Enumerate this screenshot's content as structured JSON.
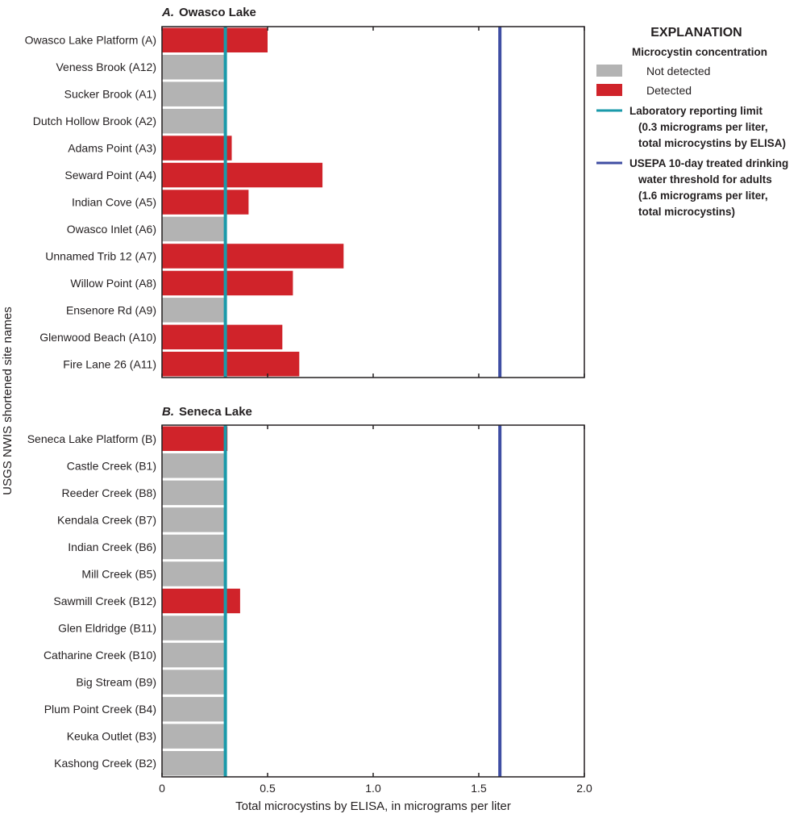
{
  "chart_data": {
    "type": "bar",
    "orientation": "horizontal",
    "xlabel": "Total microcystins by ELISA, in micrograms per liter",
    "ylabel": "USGS NWIS shortened site names",
    "xlim": [
      0,
      2.0
    ],
    "xticks": [
      0,
      0.5,
      1.0,
      1.5,
      2.0
    ],
    "xtick_labels": [
      "0",
      "0.5",
      "1.0",
      "1.5",
      "2.0"
    ],
    "grid": false,
    "legend_position": "right",
    "reference_lines": [
      {
        "name": "reporting-limit",
        "value": 0.3,
        "color": "#1a9aaa"
      },
      {
        "name": "usepa-threshold",
        "value": 1.6,
        "color": "#3f4ea3"
      }
    ],
    "panels": [
      {
        "letter": "A.",
        "title": "Owasco Lake",
        "sites": [
          {
            "name": "Owasco Lake Platform (A)",
            "value": 0.5,
            "detected": true
          },
          {
            "name": "Veness Brook (A12)",
            "value": 0.3,
            "detected": false
          },
          {
            "name": "Sucker Brook (A1)",
            "value": 0.3,
            "detected": false
          },
          {
            "name": "Dutch Hollow Brook (A2)",
            "value": 0.3,
            "detected": false
          },
          {
            "name": "Adams Point (A3)",
            "value": 0.33,
            "detected": true
          },
          {
            "name": "Seward Point (A4)",
            "value": 0.76,
            "detected": true
          },
          {
            "name": "Indian Cove (A5)",
            "value": 0.41,
            "detected": true
          },
          {
            "name": "Owasco Inlet (A6)",
            "value": 0.3,
            "detected": false
          },
          {
            "name": "Unnamed Trib 12 (A7)",
            "value": 0.86,
            "detected": true
          },
          {
            "name": "Willow Point (A8)",
            "value": 0.62,
            "detected": true
          },
          {
            "name": "Ensenore Rd (A9)",
            "value": 0.3,
            "detected": false
          },
          {
            "name": "Glenwood Beach (A10)",
            "value": 0.57,
            "detected": true
          },
          {
            "name": "Fire Lane 26 (A11)",
            "value": 0.65,
            "detected": true
          }
        ]
      },
      {
        "letter": "B.",
        "title": "Seneca Lake",
        "sites": [
          {
            "name": "Seneca Lake Platform (B)",
            "value": 0.31,
            "detected": true
          },
          {
            "name": "Castle Creek (B1)",
            "value": 0.3,
            "detected": false
          },
          {
            "name": "Reeder Creek (B8)",
            "value": 0.3,
            "detected": false
          },
          {
            "name": "Kendala Creek (B7)",
            "value": 0.3,
            "detected": false
          },
          {
            "name": "Indian Creek (B6)",
            "value": 0.3,
            "detected": false
          },
          {
            "name": "Mill Creek (B5)",
            "value": 0.3,
            "detected": false
          },
          {
            "name": "Sawmill Creek (B12)",
            "value": 0.37,
            "detected": true
          },
          {
            "name": "Glen Eldridge (B11)",
            "value": 0.3,
            "detected": false
          },
          {
            "name": "Catharine Creek (B10)",
            "value": 0.3,
            "detected": false
          },
          {
            "name": "Big Stream (B9)",
            "value": 0.3,
            "detected": false
          },
          {
            "name": "Plum Point Creek (B4)",
            "value": 0.3,
            "detected": false
          },
          {
            "name": "Keuka Outlet (B3)",
            "value": 0.3,
            "detected": false
          },
          {
            "name": "Kashong Creek (B2)",
            "value": 0.3,
            "detected": false
          }
        ]
      }
    ],
    "colors": {
      "detected": "#d0232a",
      "not_detected": "#b3b3b3",
      "reporting_limit": "#1a9aaa",
      "usepa_threshold": "#3f4ea3",
      "axis": "#231f20"
    }
  },
  "legend": {
    "heading": "EXPLANATION",
    "subheading": "Microcystin concentration",
    "items": [
      {
        "key": "not_detected",
        "label": "Not detected"
      },
      {
        "key": "detected",
        "label": "Detected"
      }
    ],
    "lines": [
      {
        "key": "reporting_limit",
        "lines": [
          "Laboratory reporting limit",
          "(0.3 micrograms per liter,",
          "total microcystins by ELISA)"
        ]
      },
      {
        "key": "usepa_threshold",
        "lines": [
          "USEPA 10-day treated drinking",
          "water threshold for adults",
          "(1.6 micrograms per liter,",
          "total microcystins)"
        ]
      }
    ]
  }
}
